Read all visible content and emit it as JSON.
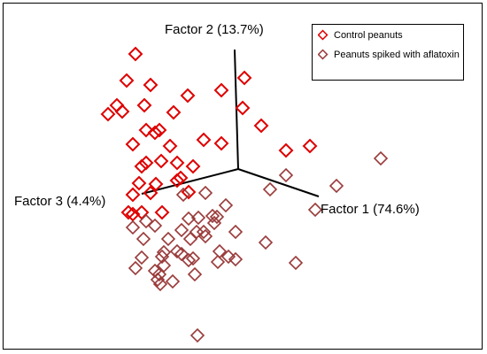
{
  "chart_data": {
    "type": "scatter",
    "title": "",
    "axes": [
      {
        "label": "Factor 1 (74.6%)"
      },
      {
        "label": "Factor 2 (13.7%)"
      },
      {
        "label": "Factor 3 (4.4%)"
      }
    ],
    "legend": {
      "placement": "top-right",
      "entries": [
        {
          "label": "Control peanuts",
          "color": "#e00000"
        },
        {
          "label": "Peanuts spiked with aflatoxin",
          "color": "#9a3a3a"
        }
      ]
    },
    "series": [
      {
        "name": "Control peanuts",
        "color": "#e00000",
        "points": [
          [
            153,
            61
          ],
          [
            143,
            91
          ],
          [
            170,
            96
          ],
          [
            212,
            108
          ],
          [
            250,
            102
          ],
          [
            276,
            88
          ],
          [
            132,
            119
          ],
          [
            122,
            129
          ],
          [
            138,
            126
          ],
          [
            163,
            119
          ],
          [
            196,
            127
          ],
          [
            274,
            122
          ],
          [
            165,
            147
          ],
          [
            175,
            150
          ],
          [
            180,
            147
          ],
          [
            295,
            142
          ],
          [
            150,
            163
          ],
          [
            230,
            158
          ],
          [
            250,
            162
          ],
          [
            192,
            165
          ],
          [
            323,
            170
          ],
          [
            350,
            165
          ],
          [
            165,
            184
          ],
          [
            182,
            182
          ],
          [
            200,
            184
          ],
          [
            218,
            188
          ],
          [
            160,
            188
          ],
          [
            157,
            207
          ],
          [
            176,
            208
          ],
          [
            200,
            204
          ],
          [
            204,
            201
          ],
          [
            213,
            217
          ],
          [
            150,
            220
          ],
          [
            170,
            218
          ],
          [
            145,
            240
          ],
          [
            150,
            242
          ],
          [
            160,
            240
          ],
          [
            183,
            240
          ]
        ]
      },
      {
        "name": "Peanuts spiked with aflatoxin",
        "color": "#9a3a3a",
        "points": [
          [
            430,
            179
          ],
          [
            323,
            198
          ],
          [
            305,
            214
          ],
          [
            380,
            210
          ],
          [
            356,
            237
          ],
          [
            255,
            232
          ],
          [
            207,
            220
          ],
          [
            232,
            218
          ],
          [
            240,
            244
          ],
          [
            245,
            245
          ],
          [
            213,
            247
          ],
          [
            224,
            246
          ],
          [
            150,
            257
          ],
          [
            162,
            270
          ],
          [
            175,
            255
          ],
          [
            165,
            250
          ],
          [
            190,
            270
          ],
          [
            205,
            260
          ],
          [
            215,
            270
          ],
          [
            222,
            262
          ],
          [
            230,
            262
          ],
          [
            232,
            267
          ],
          [
            242,
            252
          ],
          [
            266,
            262
          ],
          [
            160,
            291
          ],
          [
            183,
            290
          ],
          [
            185,
            285
          ],
          [
            200,
            284
          ],
          [
            205,
            287
          ],
          [
            213,
            294
          ],
          [
            218,
            292
          ],
          [
            248,
            284
          ],
          [
            258,
            290
          ],
          [
            266,
            293
          ],
          [
            246,
            296
          ],
          [
            300,
            274
          ],
          [
            334,
            297
          ],
          [
            153,
            303
          ],
          [
            175,
            306
          ],
          [
            180,
            310
          ],
          [
            178,
            316
          ],
          [
            185,
            300
          ],
          [
            220,
            310
          ],
          [
            195,
            318
          ],
          [
            181,
            321
          ],
          [
            223,
            379
          ]
        ]
      }
    ]
  }
}
